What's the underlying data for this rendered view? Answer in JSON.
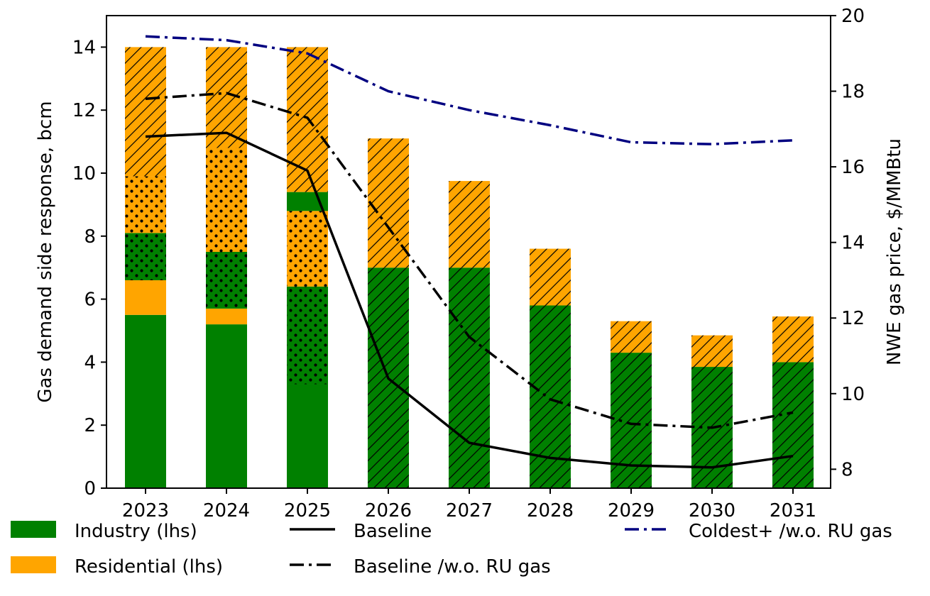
{
  "chart_data": {
    "type": "bar",
    "title": "",
    "categories": [
      "2023",
      "2024",
      "2025",
      "2026",
      "2027",
      "2028",
      "2029",
      "2030",
      "2031"
    ],
    "ylabel": "Gas demand side response, bcm",
    "y2label": "NWE gas price, $/MMBtu",
    "ylim": [
      0,
      15
    ],
    "y2lim": [
      7.5,
      20
    ],
    "yticks": [
      0,
      2,
      4,
      6,
      8,
      10,
      12,
      14
    ],
    "y2ticks": [
      8,
      10,
      12,
      14,
      16,
      18,
      20
    ],
    "grid": false,
    "bar_segments": [
      [
        {
          "sector": "industry",
          "fill": "plain",
          "from": 0,
          "to": 5.5
        },
        {
          "sector": "residential",
          "fill": "plain",
          "from": 5.5,
          "to": 6.6
        },
        {
          "sector": "industry",
          "fill": "dots",
          "from": 6.6,
          "to": 8.1
        },
        {
          "sector": "residential",
          "fill": "dots",
          "from": 8.1,
          "to": 9.9
        },
        {
          "sector": "residential",
          "fill": "hatch",
          "from": 9.9,
          "to": 14.0
        }
      ],
      [
        {
          "sector": "industry",
          "fill": "plain",
          "from": 0,
          "to": 5.2
        },
        {
          "sector": "residential",
          "fill": "plain",
          "from": 5.2,
          "to": 5.7
        },
        {
          "sector": "industry",
          "fill": "dots",
          "from": 5.7,
          "to": 7.5
        },
        {
          "sector": "residential",
          "fill": "dots",
          "from": 7.5,
          "to": 10.8
        },
        {
          "sector": "residential",
          "fill": "hatch",
          "from": 10.8,
          "to": 14.0
        }
      ],
      [
        {
          "sector": "industry",
          "fill": "plain",
          "from": 0,
          "to": 3.3
        },
        {
          "sector": "industry",
          "fill": "dots",
          "from": 3.3,
          "to": 6.4
        },
        {
          "sector": "residential",
          "fill": "dots",
          "from": 6.4,
          "to": 8.8
        },
        {
          "sector": "industry",
          "fill": "plain",
          "from": 8.8,
          "to": 9.4
        },
        {
          "sector": "residential",
          "fill": "hatch",
          "from": 9.4,
          "to": 14.0
        }
      ],
      [
        {
          "sector": "industry",
          "fill": "hatch",
          "from": 0,
          "to": 7.0
        },
        {
          "sector": "residential",
          "fill": "hatch",
          "from": 7.0,
          "to": 11.1
        }
      ],
      [
        {
          "sector": "industry",
          "fill": "hatch",
          "from": 0,
          "to": 7.0
        },
        {
          "sector": "residential",
          "fill": "hatch",
          "from": 7.0,
          "to": 9.75
        }
      ],
      [
        {
          "sector": "industry",
          "fill": "hatch",
          "from": 0,
          "to": 5.8
        },
        {
          "sector": "residential",
          "fill": "hatch",
          "from": 5.8,
          "to": 7.6
        }
      ],
      [
        {
          "sector": "industry",
          "fill": "hatch",
          "from": 0,
          "to": 4.3
        },
        {
          "sector": "residential",
          "fill": "hatch",
          "from": 4.3,
          "to": 5.3
        }
      ],
      [
        {
          "sector": "industry",
          "fill": "hatch",
          "from": 0,
          "to": 3.85
        },
        {
          "sector": "residential",
          "fill": "hatch",
          "from": 3.85,
          "to": 4.85
        }
      ],
      [
        {
          "sector": "industry",
          "fill": "hatch",
          "from": 0,
          "to": 4.0
        },
        {
          "sector": "residential",
          "fill": "hatch",
          "from": 4.0,
          "to": 5.45
        }
      ]
    ],
    "series": [
      {
        "name": "Industry (lhs)",
        "kind": "bar",
        "color": "#008000"
      },
      {
        "name": "Residential (lhs)",
        "kind": "bar",
        "color": "#FFA500"
      },
      {
        "name": "Baseline",
        "kind": "line",
        "axis": "right",
        "color": "#000000",
        "style": "solid",
        "values": [
          16.8,
          16.9,
          15.9,
          10.4,
          8.7,
          8.3,
          8.1,
          8.05,
          8.35
        ]
      },
      {
        "name": "Baseline /w.o. RU gas",
        "kind": "line",
        "axis": "right",
        "color": "#000000",
        "style": "dashdot",
        "values": [
          17.8,
          17.95,
          17.3,
          14.4,
          11.5,
          9.85,
          9.2,
          9.1,
          9.5
        ]
      },
      {
        "name": "Coldest+ /w.o. RU gas",
        "kind": "line",
        "axis": "right",
        "color": "#000080",
        "style": "dashdot",
        "values": [
          19.45,
          19.35,
          19.0,
          18.0,
          17.5,
          17.1,
          16.65,
          16.6,
          16.7
        ]
      }
    ],
    "legend_position": "bottom",
    "colors": {
      "industry": "#008000",
      "residential": "#FFA500",
      "navy": "#000080",
      "black": "#000000"
    }
  }
}
